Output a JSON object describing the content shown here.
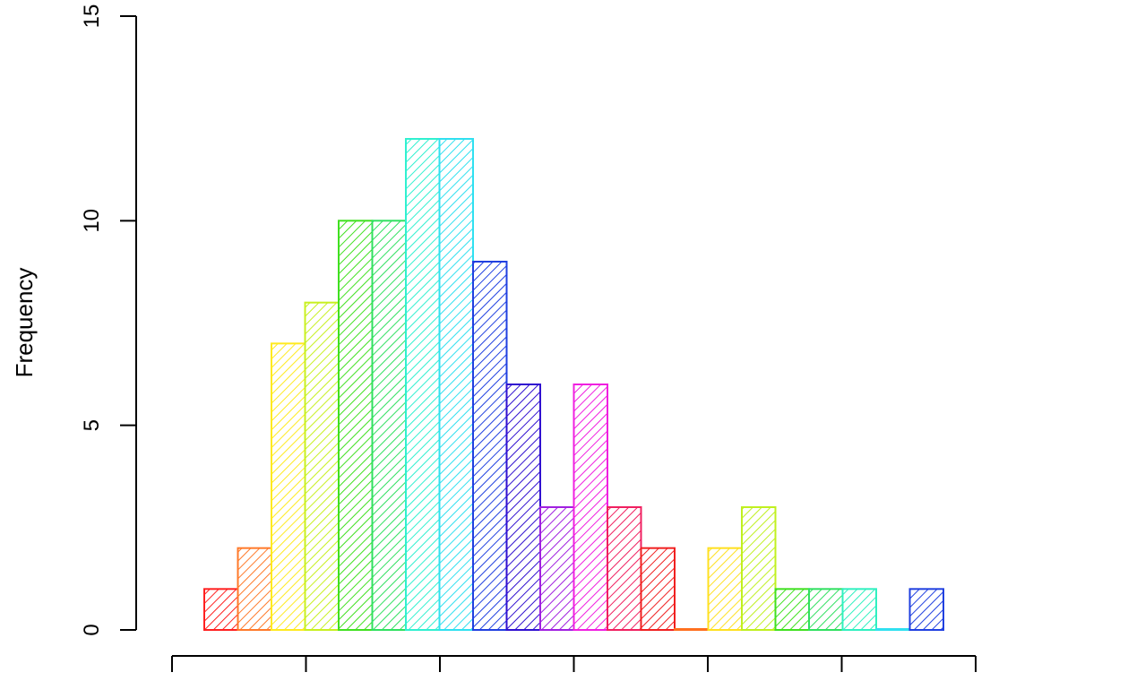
{
  "chart_data": {
    "type": "bar",
    "title": "",
    "xlabel": "",
    "ylabel": "Frequency",
    "ylim": [
      0,
      15
    ],
    "y_ticks": [
      "0",
      "5",
      "10",
      "15"
    ],
    "x_ticks_count": 7,
    "bar_style": "diagonal hatching",
    "values": [
      1,
      2,
      7,
      8,
      10,
      10,
      12,
      12,
      9,
      6,
      3,
      6,
      3,
      2,
      0,
      2,
      3,
      1,
      1,
      1,
      0,
      1
    ],
    "colors": [
      "#ff2020",
      "#ff7a2a",
      "#ffea20",
      "#c8f020",
      "#40e020",
      "#30e060",
      "#30f0d0",
      "#30e0f0",
      "#2040e0",
      "#3010d0",
      "#a020e0",
      "#f020e0",
      "#f02060",
      "#f02020",
      "#ff7020",
      "#ffe020",
      "#c0f020",
      "#40e020",
      "#30e060",
      "#30f0c0",
      "#30e0f0",
      "#2040e0"
    ]
  }
}
